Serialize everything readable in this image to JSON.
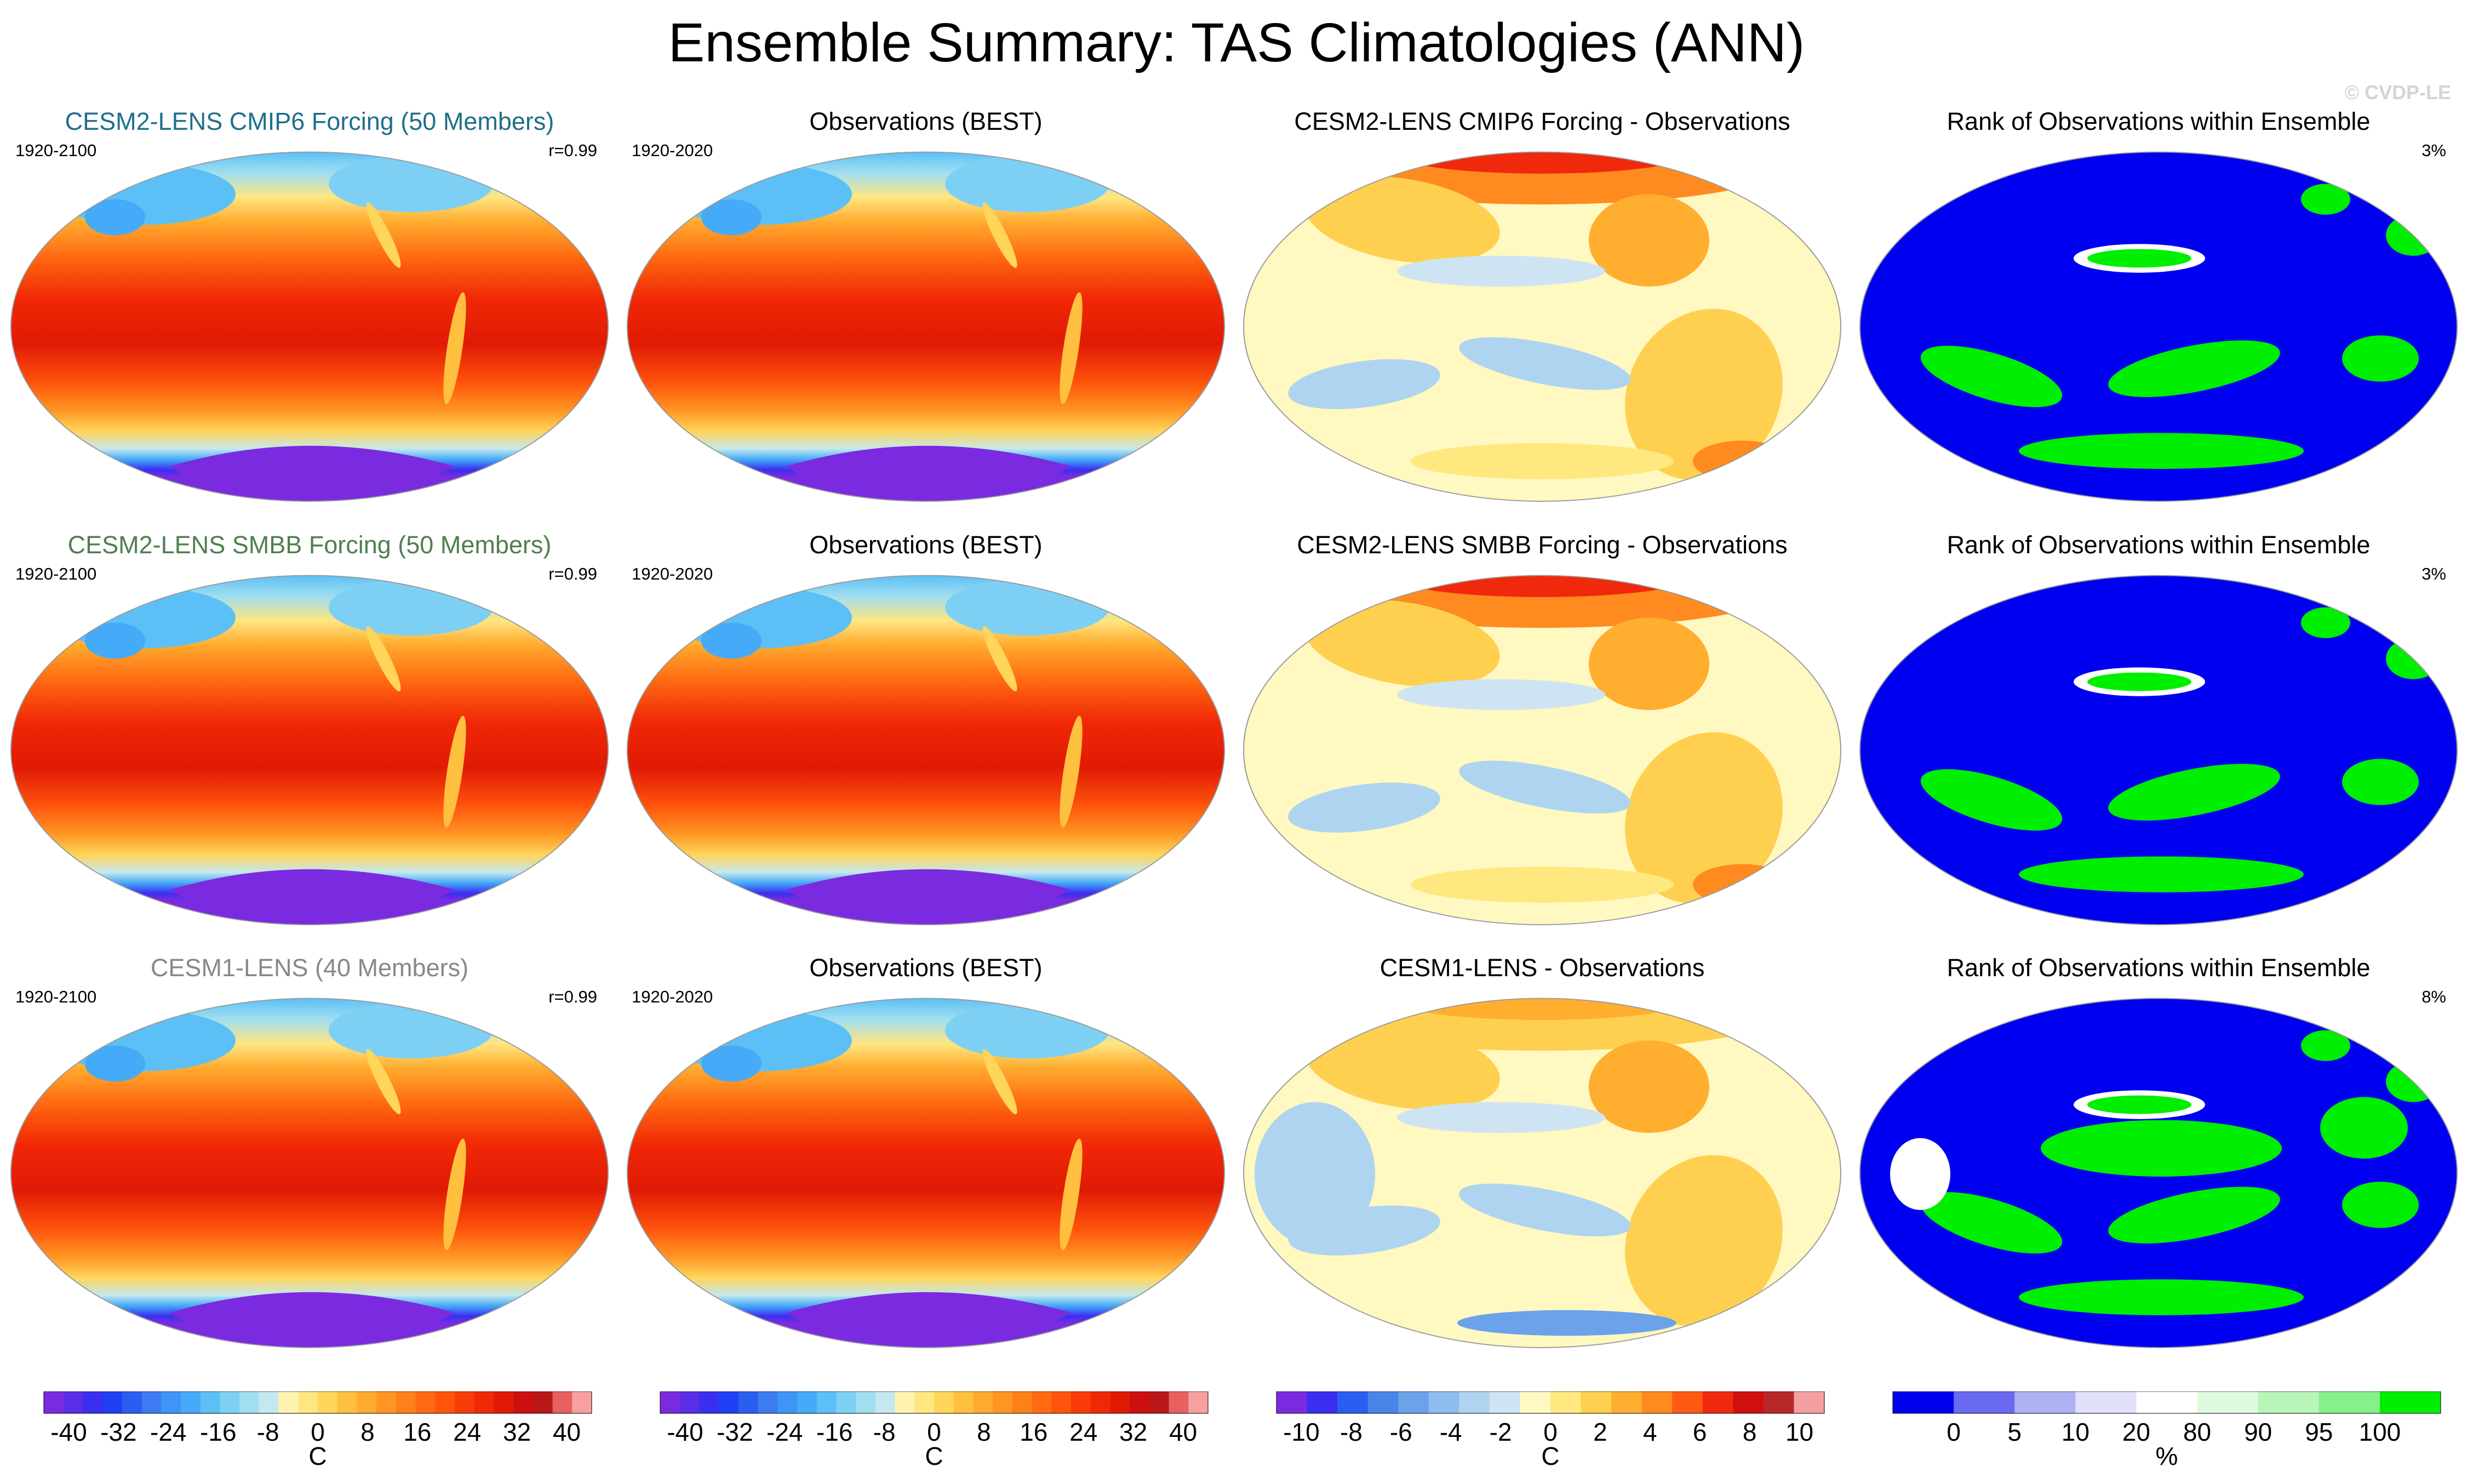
{
  "title": "Ensemble Summary: TAS Climatologies (ANN)",
  "watermark": "© CVDP-LE",
  "colors": {
    "title_cmip6": "#1f6f8b",
    "title_smbb": "#4f7f4f",
    "title_cesm1": "#888888",
    "title_black": "#000000"
  },
  "rows": [
    {
      "panels": [
        {
          "type": "climo",
          "title": "CESM2-LENS CMIP6 Forcing (50 Members)",
          "title_color": "#1f6f8b",
          "left_label": "1920-2100",
          "right_label": "r=0.99"
        },
        {
          "type": "climo",
          "title": "Observations (BEST)",
          "title_color": "#000000",
          "left_label": "1920-2020",
          "right_label": ""
        },
        {
          "type": "diff",
          "variant": 0,
          "title": "CESM2-LENS CMIP6 Forcing - Observations",
          "title_color": "#000000",
          "left_label": "",
          "right_label": ""
        },
        {
          "type": "rank",
          "variant": 0,
          "title": "Rank of Observations within Ensemble",
          "title_color": "#000000",
          "left_label": "",
          "right_label": "3%"
        }
      ]
    },
    {
      "panels": [
        {
          "type": "climo",
          "title": "CESM2-LENS SMBB Forcing (50 Members)",
          "title_color": "#4f7f4f",
          "left_label": "1920-2100",
          "right_label": "r=0.99"
        },
        {
          "type": "climo",
          "title": "Observations (BEST)",
          "title_color": "#000000",
          "left_label": "1920-2020",
          "right_label": ""
        },
        {
          "type": "diff",
          "variant": 1,
          "title": "CESM2-LENS SMBB Forcing - Observations",
          "title_color": "#000000",
          "left_label": "",
          "right_label": ""
        },
        {
          "type": "rank",
          "variant": 1,
          "title": "Rank of Observations within Ensemble",
          "title_color": "#000000",
          "left_label": "",
          "right_label": "3%"
        }
      ]
    },
    {
      "panels": [
        {
          "type": "climo",
          "title": "CESM1-LENS (40 Members)",
          "title_color": "#888888",
          "left_label": "1920-2100",
          "right_label": "r=0.99"
        },
        {
          "type": "climo",
          "title": "Observations (BEST)",
          "title_color": "#000000",
          "left_label": "1920-2020",
          "right_label": ""
        },
        {
          "type": "diff",
          "variant": 2,
          "title": "CESM1-LENS - Observations",
          "title_color": "#000000",
          "left_label": "",
          "right_label": ""
        },
        {
          "type": "rank",
          "variant": 2,
          "title": "Rank of Observations within Ensemble",
          "title_color": "#000000",
          "left_label": "",
          "right_label": "8%"
        }
      ]
    }
  ],
  "colorbars": [
    {
      "name": "climatology-colorbar-1",
      "colors": [
        "#7a2be0",
        "#5a2ee6",
        "#3a2ff0",
        "#2040f5",
        "#2a5ef0",
        "#3c7bf2",
        "#3e94f7",
        "#45aaf7",
        "#5cc0f7",
        "#7dd0f4",
        "#a0def0",
        "#c4e8ee",
        "#fff3b0",
        "#ffe680",
        "#ffd55a",
        "#ffc040",
        "#ffab2e",
        "#ff9623",
        "#ff801a",
        "#ff6a12",
        "#ff540c",
        "#fa3c08",
        "#f02806",
        "#e01a05",
        "#cc1010",
        "#b81818",
        "#e86060",
        "#f7a0a0"
      ],
      "tick_labels": [
        "-40",
        "-32",
        "-24",
        "-16",
        "-8",
        "0",
        "8",
        "16",
        "24",
        "32",
        "40"
      ],
      "tick_values": [
        -40,
        -32,
        -24,
        -16,
        -8,
        0,
        8,
        16,
        24,
        32,
        40
      ],
      "range": [
        -44,
        44
      ],
      "units": "C"
    },
    {
      "name": "climatology-colorbar-2",
      "colors": [
        "#7a2be0",
        "#5a2ee6",
        "#3a2ff0",
        "#2040f5",
        "#2a5ef0",
        "#3c7bf2",
        "#3e94f7",
        "#45aaf7",
        "#5cc0f7",
        "#7dd0f4",
        "#a0def0",
        "#c4e8ee",
        "#fff3b0",
        "#ffe680",
        "#ffd55a",
        "#ffc040",
        "#ffab2e",
        "#ff9623",
        "#ff801a",
        "#ff6a12",
        "#ff540c",
        "#fa3c08",
        "#f02806",
        "#e01a05",
        "#cc1010",
        "#b81818",
        "#e86060",
        "#f7a0a0"
      ],
      "tick_labels": [
        "-40",
        "-32",
        "-24",
        "-16",
        "-8",
        "0",
        "8",
        "16",
        "24",
        "32",
        "40"
      ],
      "tick_values": [
        -40,
        -32,
        -24,
        -16,
        -8,
        0,
        8,
        16,
        24,
        32,
        40
      ],
      "range": [
        -44,
        44
      ],
      "units": "C"
    },
    {
      "name": "difference-colorbar",
      "colors": [
        "#7a2be0",
        "#3a2ff0",
        "#2a5ef0",
        "#4a84e8",
        "#6ca2ea",
        "#8dbdf0",
        "#aed4f0",
        "#cfe4f2",
        "#fff8c0",
        "#ffe880",
        "#ffd050",
        "#ffae30",
        "#ff8a20",
        "#ff5a14",
        "#f0280c",
        "#d01010",
        "#b82828",
        "#f5a0a0"
      ],
      "tick_labels": [
        "-10",
        "-8",
        "-6",
        "-4",
        "-2",
        "0",
        "2",
        "4",
        "6",
        "8",
        "10"
      ],
      "tick_values": [
        -10,
        -8,
        -6,
        -4,
        -2,
        0,
        2,
        4,
        6,
        8,
        10
      ],
      "range": [
        -11,
        11
      ],
      "units": "C"
    },
    {
      "name": "rank-colorbar",
      "colors": [
        "#0000f0",
        "#6a6af0",
        "#b0b0f4",
        "#e0e0fa",
        "#ffffff",
        "#e0fae0",
        "#b8f5b8",
        "#88f088",
        "#00ee00"
      ],
      "tick_labels": [
        "0",
        "5",
        "10",
        "20",
        "80",
        "90",
        "95",
        "100"
      ],
      "tick_values": [
        0,
        5,
        10,
        20,
        80,
        90,
        95,
        100
      ],
      "units": "%"
    }
  ]
}
